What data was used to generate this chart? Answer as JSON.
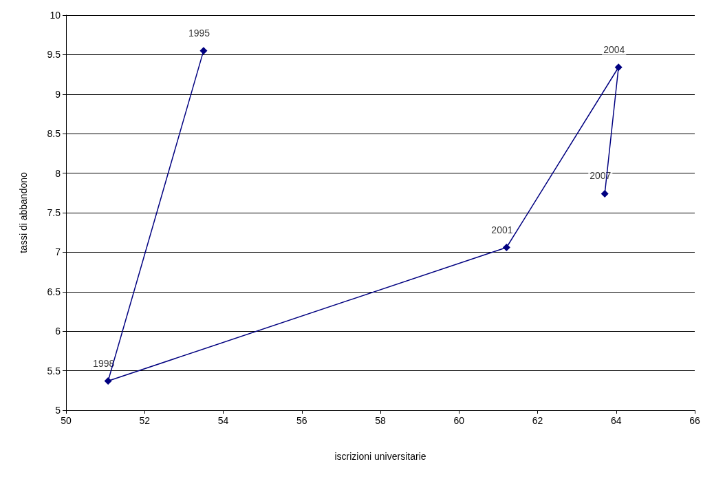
{
  "chart_data": {
    "type": "line",
    "xlabel": "iscrizioni universitarie",
    "ylabel": "tassi di abbandono",
    "x": [
      53.5,
      51.07,
      61.21,
      64.06,
      63.71
    ],
    "series": [
      {
        "color": "#000080",
        "values": [
          9.55,
          5.37,
          7.06,
          9.34,
          7.74
        ]
      }
    ],
    "xlim": [
      50,
      66
    ],
    "xticks": [
      50,
      52,
      54,
      56,
      58,
      60,
      62,
      64,
      66
    ],
    "ylim": [
      5,
      10
    ],
    "yticks": [
      5,
      5.5,
      6,
      6.5,
      7,
      7.5,
      8,
      8.5,
      9,
      9.5,
      10
    ],
    "grid": "y",
    "marker": "diamond",
    "line_style": "solid",
    "annotations": [
      {
        "text": "1995",
        "x": 53.5,
        "y": 9.55
      },
      {
        "text": "1998",
        "x": 51.07,
        "y": 5.37
      },
      {
        "text": "2001",
        "x": 61.21,
        "y": 7.06
      },
      {
        "text": "2004",
        "x": 64.06,
        "y": 9.34
      },
      {
        "text": "2007",
        "x": 63.71,
        "y": 7.74
      }
    ]
  }
}
